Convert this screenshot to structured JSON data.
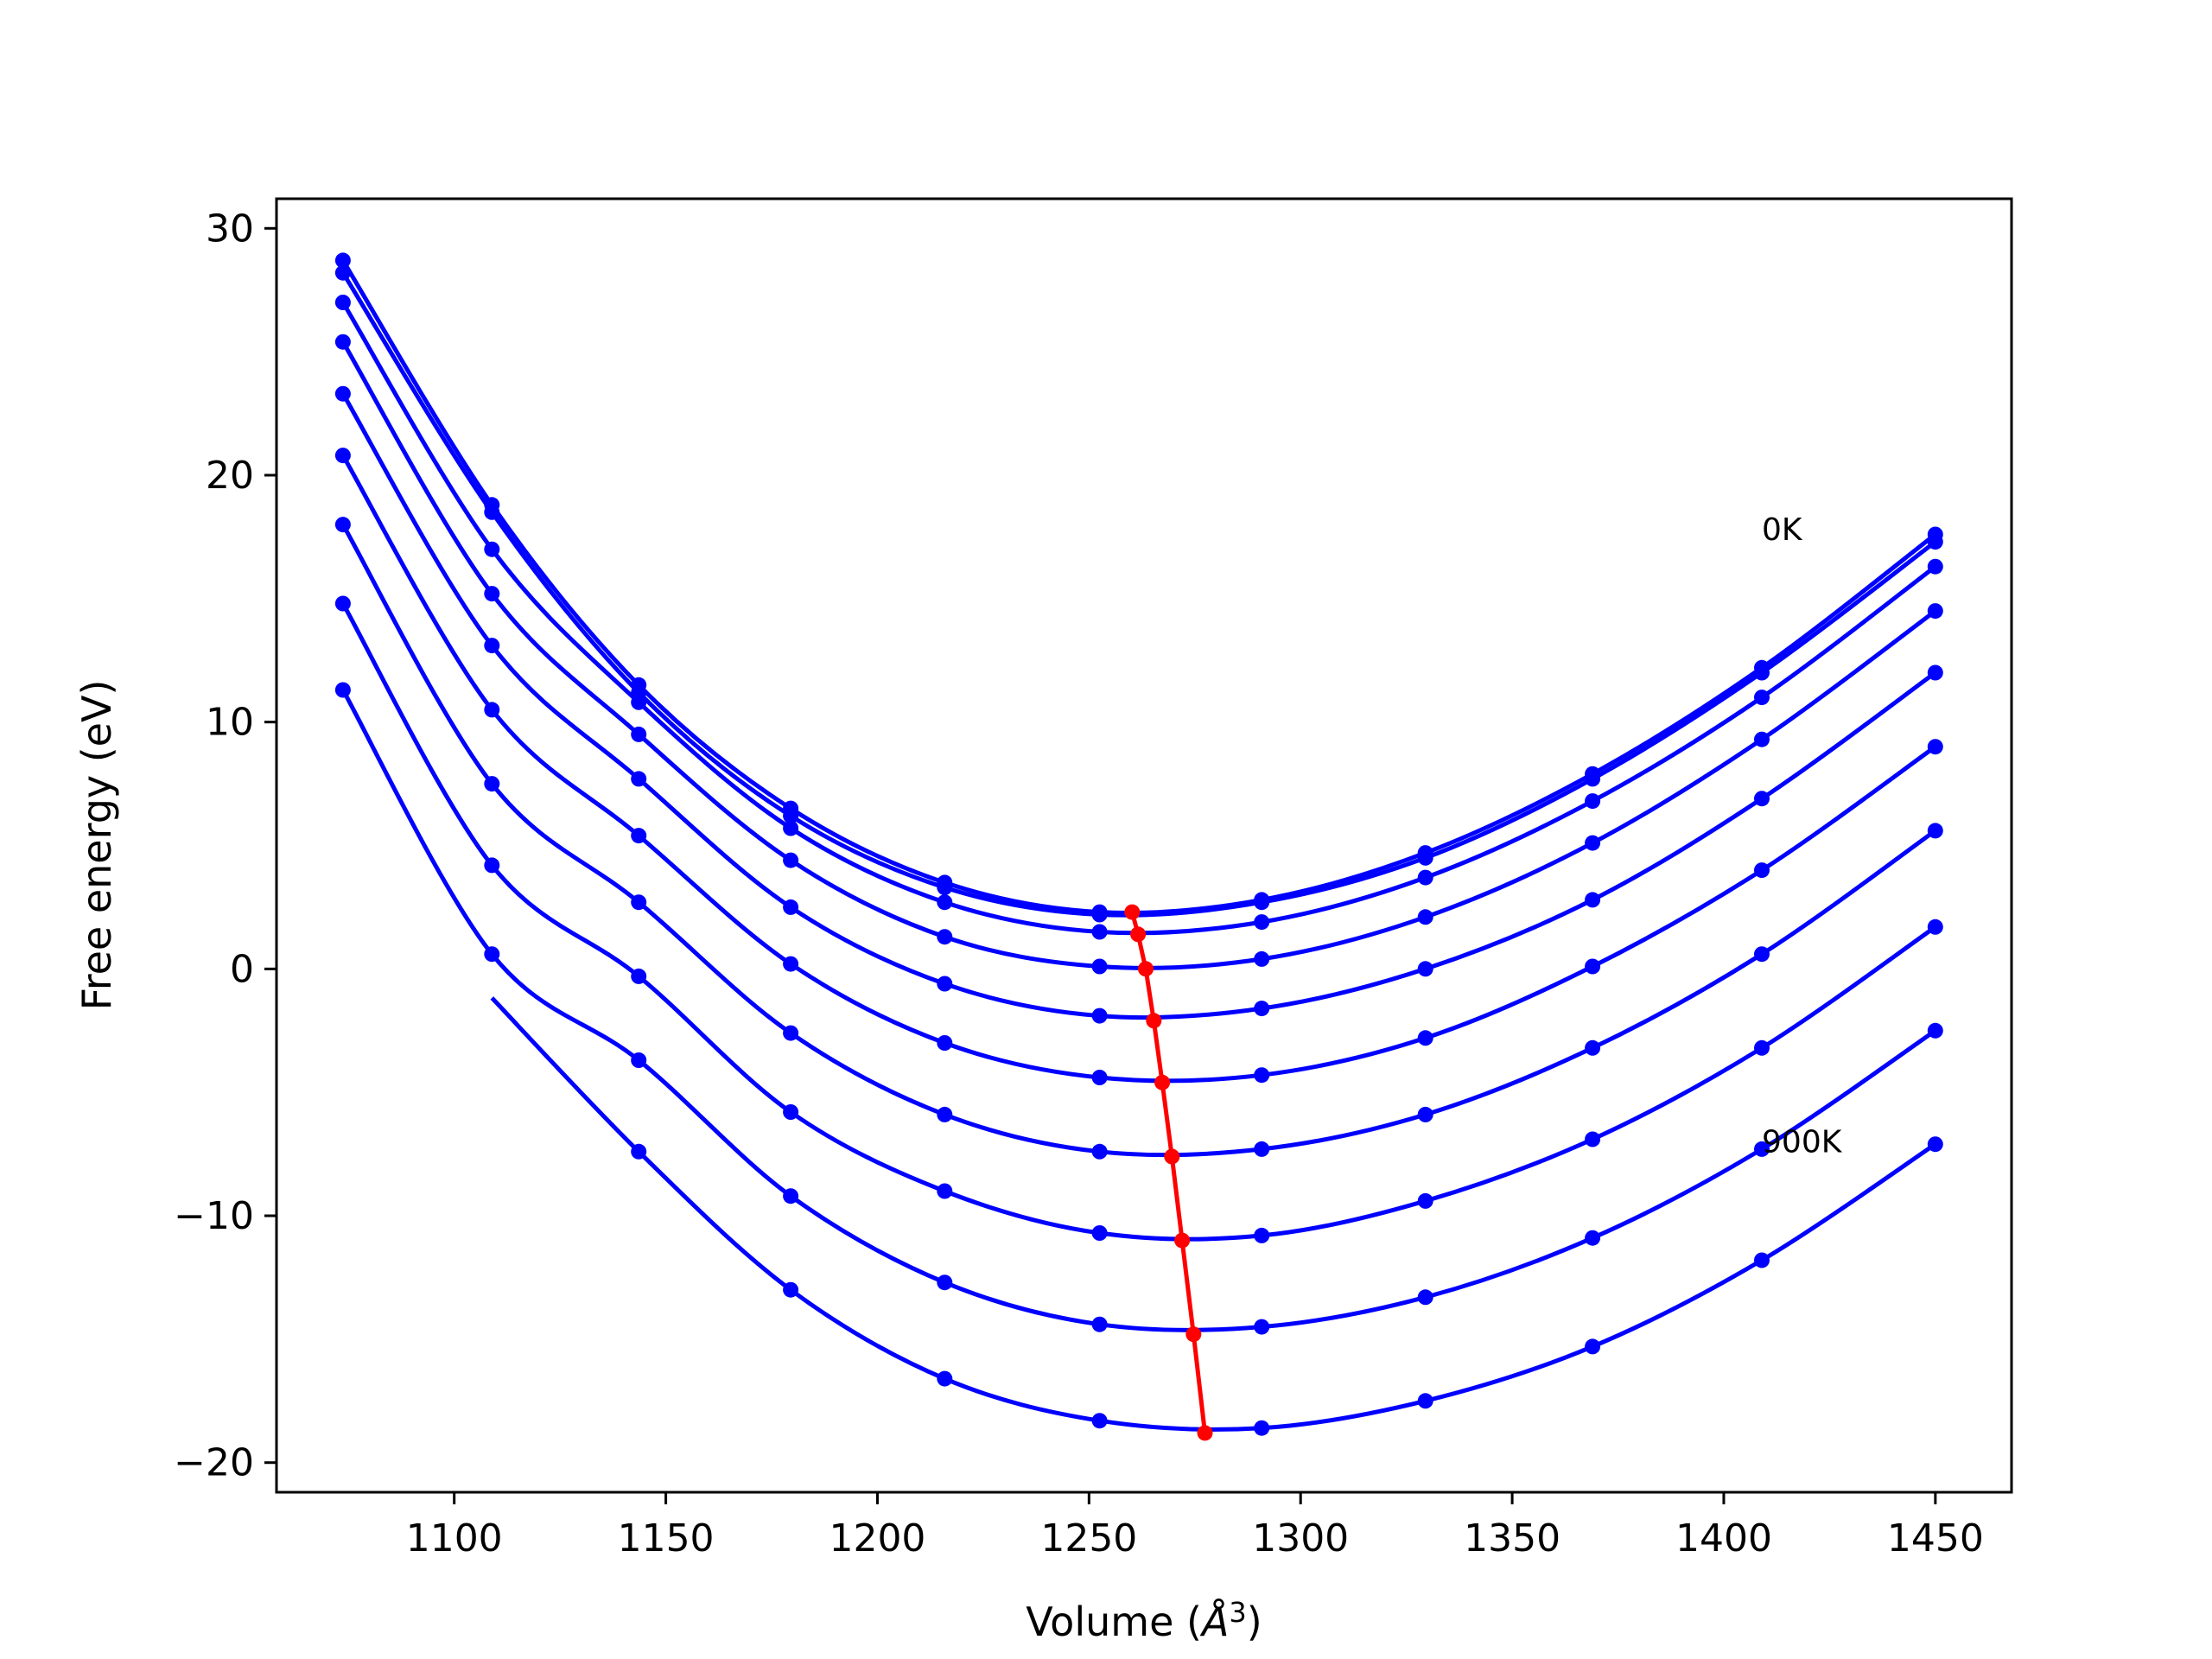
{
  "chart_data": {
    "type": "line",
    "xlabel": "Volume (",
    "xlabel_unit": "Å",
    "xlabel_sup": "3",
    "xlabel_close": ")",
    "ylabel": "Free energy (eV)",
    "xlim": [
      1058,
      1468
    ],
    "ylim": [
      -21.2,
      31.2
    ],
    "xticks": [
      1100,
      1150,
      1200,
      1250,
      1300,
      1350,
      1400,
      1450
    ],
    "xtick_labels": [
      "1100",
      "1150",
      "1200",
      "1250",
      "1300",
      "1350",
      "1400",
      "1450"
    ],
    "yticks": [
      30,
      20,
      10,
      0,
      -10,
      -20
    ],
    "ytick_labels": [
      "30",
      "20",
      "10",
      "0",
      "−10",
      "−20"
    ],
    "grid": false,
    "legend": "none",
    "x": [
      1073.7,
      1108.9,
      1143.6,
      1179.5,
      1215.9,
      1252.5,
      1290.8,
      1329.5,
      1369.0,
      1409.0,
      1450.0
    ],
    "series": [
      {
        "values": [
          28.7,
          18.8,
          11.5,
          6.5,
          3.5,
          2.3,
          2.8,
          4.7,
          7.9,
          12.2,
          17.6
        ]
      },
      {
        "values": [
          28.2,
          18.5,
          11.2,
          6.2,
          3.3,
          2.2,
          2.7,
          4.5,
          7.7,
          12.0,
          17.3
        ]
      },
      {
        "values": [
          27.0,
          17.0,
          10.8,
          5.7,
          2.7,
          1.5,
          1.9,
          3.7,
          6.8,
          11.0,
          16.3
        ]
      },
      {
        "values": [
          25.4,
          15.2,
          9.5,
          4.4,
          1.3,
          0.1,
          0.4,
          2.1,
          5.1,
          9.3,
          14.5
        ]
      },
      {
        "values": [
          23.3,
          13.1,
          7.7,
          2.5,
          -0.6,
          -1.9,
          -1.6,
          0.0,
          2.8,
          6.9,
          12.0
        ]
      },
      {
        "values": [
          20.8,
          10.5,
          5.4,
          0.2,
          -3.0,
          -4.4,
          -4.3,
          -2.8,
          0.1,
          4.0,
          9.0
        ]
      },
      {
        "values": [
          18.0,
          7.5,
          2.7,
          -2.6,
          -5.9,
          -7.4,
          -7.3,
          -5.9,
          -3.2,
          0.6,
          5.6
        ]
      },
      {
        "values": [
          14.8,
          4.2,
          -0.3,
          -5.8,
          -9.0,
          -10.7,
          -10.8,
          -9.4,
          -6.9,
          -3.2,
          1.7
        ]
      },
      {
        "values": [
          11.3,
          0.6,
          -3.7,
          -9.2,
          -12.7,
          -14.4,
          -14.5,
          -13.3,
          -10.9,
          -7.3,
          -2.5
        ]
      },
      {
        "values": [
          null,
          null,
          -7.4,
          -13.0,
          -16.6,
          -18.3,
          -18.6,
          -17.5,
          -15.3,
          -11.8,
          -7.1
        ]
      }
    ],
    "minima": {
      "x": [
        1260.2,
        1261.6,
        1263.4,
        1265.3,
        1267.3,
        1269.6,
        1272.0,
        1274.7,
        1277.4
      ],
      "y": [
        2.3,
        1.4,
        0.0,
        -2.1,
        -4.6,
        -7.6,
        -11.0,
        -14.8,
        -18.8
      ]
    },
    "series_color": "#0000ff",
    "minima_color": "#ff0000",
    "annotations": [
      {
        "text": "0K",
        "x": 1409,
        "y": 17.8
      },
      {
        "text": "900K",
        "x": 1409,
        "y": -7.0
      }
    ]
  }
}
